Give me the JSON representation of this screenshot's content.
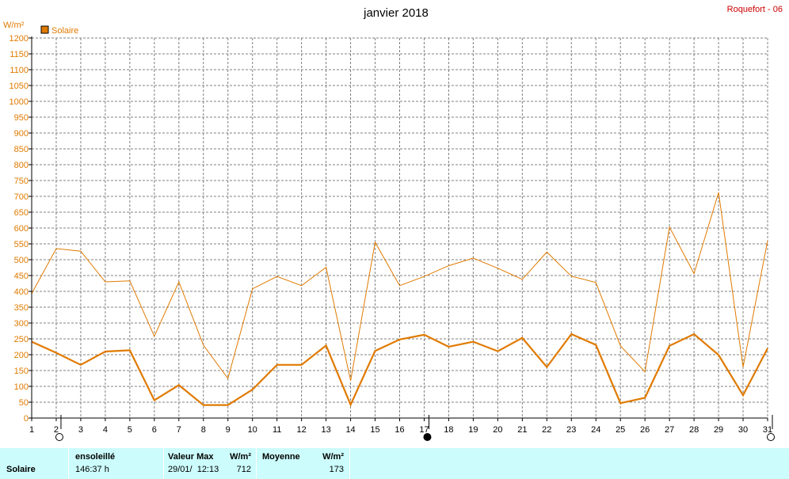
{
  "header": {
    "title": "janvier 2018",
    "station": "Roquefort - 06",
    "unit": "W/m²"
  },
  "legend": {
    "label": "Solaire",
    "color": "#e07a00"
  },
  "colors": {
    "series": "#e07a00",
    "axis": "#000000",
    "grid": "#808080"
  },
  "moon_phases": [
    {
      "day": 2,
      "phase": "full-moon"
    },
    {
      "day": 17,
      "phase": "new-moon"
    },
    {
      "day": 31,
      "phase": "full-moon"
    }
  ],
  "chart_data": {
    "type": "line",
    "title": "janvier 2018",
    "ylabel": "W/m²",
    "xlim": [
      1,
      31
    ],
    "ylim": [
      0,
      1200
    ],
    "ystep": 50,
    "grid": true,
    "legend_position": "top-left",
    "x": [
      1,
      2,
      3,
      4,
      5,
      6,
      7,
      8,
      9,
      10,
      11,
      12,
      13,
      14,
      15,
      16,
      17,
      18,
      19,
      20,
      21,
      22,
      23,
      24,
      25,
      26,
      27,
      28,
      29,
      30,
      31
    ],
    "series": [
      {
        "name": "Solaire",
        "style": "max",
        "values": [
          393,
          535,
          527,
          430,
          433,
          258,
          430,
          230,
          125,
          408,
          447,
          418,
          476,
          118,
          555,
          418,
          447,
          481,
          505,
          473,
          438,
          524,
          448,
          428,
          228,
          146,
          603,
          456,
          712,
          161,
          560
        ]
      },
      {
        "name": "Solaire",
        "style": "mean",
        "values": [
          241,
          206,
          168,
          210,
          214,
          56,
          104,
          41,
          41,
          90,
          168,
          168,
          229,
          42,
          212,
          248,
          263,
          225,
          241,
          211,
          253,
          161,
          265,
          231,
          47,
          64,
          228,
          265,
          199,
          72,
          220
        ]
      }
    ]
  },
  "summary": {
    "row_label": "Solaire",
    "sunshine": {
      "header": "ensoleillé",
      "value": "146:37 h"
    },
    "max": {
      "header": "Valeur Max",
      "unit": "W/m²",
      "date": "29/01/  12:13",
      "value": "712"
    },
    "mean": {
      "header": "Moyenne",
      "unit": "W/m²",
      "value": "173"
    }
  }
}
